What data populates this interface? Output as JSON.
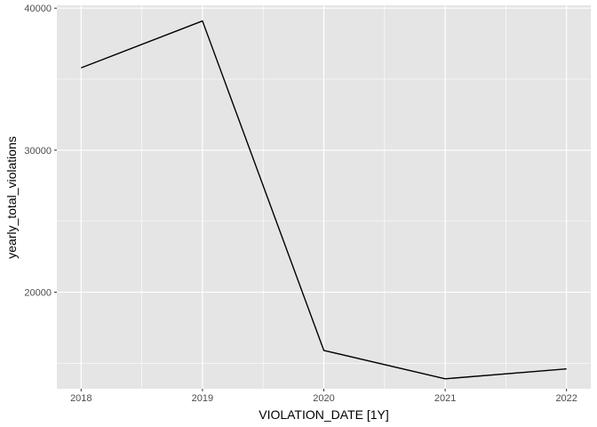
{
  "chart_data": {
    "type": "line",
    "xlabel": "VIOLATION_DATE [1Y]",
    "ylabel": "yearly_total_violations",
    "x": [
      "2018",
      "2019",
      "2020",
      "2021",
      "2022"
    ],
    "series": [
      {
        "values": [
          35800,
          39100,
          15900,
          13900,
          14600
        ]
      }
    ],
    "xlim": [
      2017.8,
      2022.2
    ],
    "ylim": [
      13200,
      40200
    ],
    "yticks": [
      20000,
      30000,
      40000
    ],
    "ytick_labels": [
      "20000",
      "30000",
      "40000"
    ],
    "grid": true,
    "panel_background": "#e5e5e5",
    "gridline_color": "#ffffff",
    "line_color": "#000000"
  }
}
